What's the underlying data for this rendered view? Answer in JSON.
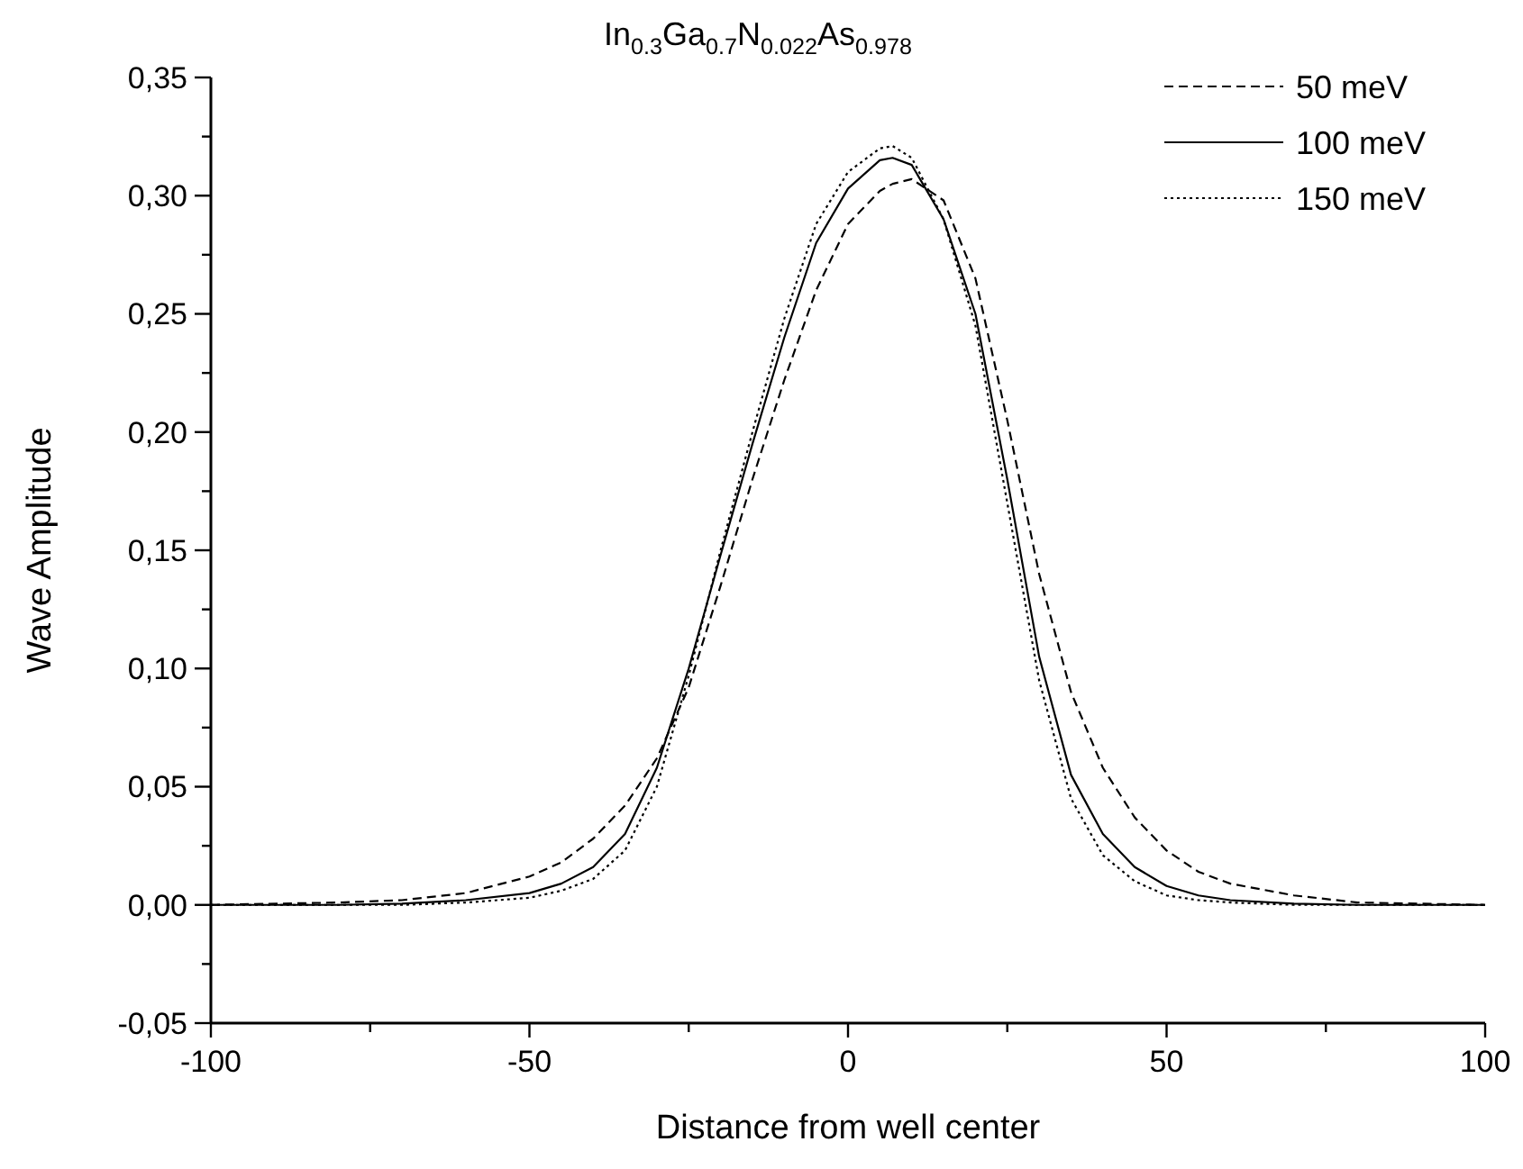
{
  "chart_data": {
    "type": "line",
    "title": "In$_{0.3}$Ga$_{0.7}$N$_{0.022}$As$_{0.978}$",
    "xlabel": "Distance from well center",
    "ylabel": "Wave Amplitude",
    "x": [
      -100,
      -80,
      -70,
      -60,
      -50,
      -45,
      -40,
      -35,
      -30,
      -25,
      -20,
      -15,
      -10,
      -5,
      0,
      5,
      7,
      10,
      15,
      20,
      25,
      30,
      35,
      40,
      45,
      50,
      55,
      60,
      70,
      80,
      100
    ],
    "series": [
      {
        "name": "50 meV",
        "color": "#000000",
        "line_style": "dashed",
        "values": [
          0,
          0.001,
          0.002,
          0.005,
          0.012,
          0.018,
          0.028,
          0.042,
          0.062,
          0.092,
          0.135,
          0.18,
          0.222,
          0.26,
          0.288,
          0.302,
          0.305,
          0.307,
          0.298,
          0.265,
          0.205,
          0.14,
          0.09,
          0.058,
          0.037,
          0.023,
          0.014,
          0.009,
          0.004,
          0.001,
          0
        ]
      },
      {
        "name": "100 meV",
        "color": "#000000",
        "line_style": "solid",
        "values": [
          0,
          0,
          0.0005,
          0.002,
          0.005,
          0.009,
          0.016,
          0.03,
          0.058,
          0.1,
          0.148,
          0.195,
          0.24,
          0.28,
          0.303,
          0.315,
          0.316,
          0.313,
          0.29,
          0.25,
          0.18,
          0.105,
          0.055,
          0.03,
          0.016,
          0.008,
          0.004,
          0.002,
          0.0005,
          0,
          0
        ]
      },
      {
        "name": "150 meV",
        "color": "#000000",
        "line_style": "dotted",
        "values": [
          0,
          0,
          0,
          0.001,
          0.003,
          0.006,
          0.011,
          0.023,
          0.05,
          0.097,
          0.15,
          0.2,
          0.248,
          0.288,
          0.31,
          0.32,
          0.321,
          0.316,
          0.29,
          0.245,
          0.17,
          0.095,
          0.045,
          0.021,
          0.01,
          0.004,
          0.002,
          0.001,
          0,
          0,
          0
        ]
      }
    ],
    "xlim": [
      -100,
      100
    ],
    "xticks": [
      -100,
      {
        "value": -75,
        "label": null
      },
      -50,
      {
        "value": -25,
        "label": null
      },
      0,
      {
        "value": 25,
        "label": null
      },
      50,
      {
        "value": 75,
        "label": null
      },
      100
    ],
    "ylim": [
      -0.05,
      0.35
    ],
    "yticks": [
      {
        "value": -0.05,
        "label": "-0,05"
      },
      {
        "value": -0.025,
        "label": null
      },
      {
        "value": 0,
        "label": "0,00"
      },
      {
        "value": 0.025,
        "label": null
      },
      {
        "value": 0.05,
        "label": "0,05"
      },
      {
        "value": 0.075,
        "label": null
      },
      {
        "value": 0.1,
        "label": "0,10"
      },
      {
        "value": 0.125,
        "label": null
      },
      {
        "value": 0.15,
        "label": "0,15"
      },
      {
        "value": 0.175,
        "label": null
      },
      {
        "value": 0.2,
        "label": "0,20"
      },
      {
        "value": 0.225,
        "label": null
      },
      {
        "value": 0.25,
        "label": "0,25"
      },
      {
        "value": 0.275,
        "label": null
      },
      {
        "value": 0.3,
        "label": "0,30"
      },
      {
        "value": 0.325,
        "label": null
      },
      {
        "value": 0.35,
        "label": "0,35"
      }
    ],
    "grid": false,
    "legend": "top right",
    "marker": "none"
  }
}
